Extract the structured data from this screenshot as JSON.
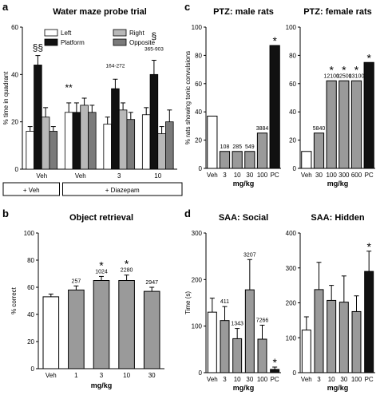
{
  "panel_letters": {
    "a": "a",
    "b": "b",
    "c": "c",
    "d": "d"
  },
  "chart_data": [
    {
      "id": "a",
      "type": "bar",
      "title": "Water maze probe trial",
      "xlabel": "",
      "ylabel": "% time in quadrant",
      "ylim": [
        0,
        60
      ],
      "yticks": [
        0,
        20,
        40,
        60
      ],
      "legend": {
        "placement": "top",
        "entries": [
          {
            "name": "Left",
            "color": "#ffffff"
          },
          {
            "name": "Platform",
            "color": "#111111"
          },
          {
            "name": "Right",
            "color": "#b8b8b8"
          },
          {
            "name": "Opposite",
            "color": "#7a7a7a"
          }
        ]
      },
      "categories": [
        "Veh",
        "Veh",
        "3",
        "10"
      ],
      "groups": [
        {
          "label": "+ Veh",
          "categories": [
            "Veh"
          ]
        },
        {
          "label": "+ Diazepam",
          "categories": [
            "Veh",
            "3",
            "10"
          ]
        }
      ],
      "series": [
        {
          "name": "Left",
          "values": [
            16,
            24,
            19,
            23
          ],
          "errors": [
            2,
            4,
            3,
            3
          ]
        },
        {
          "name": "Platform",
          "values": [
            44,
            24,
            34,
            40
          ],
          "errors": [
            4,
            4,
            4,
            6
          ]
        },
        {
          "name": "Right",
          "values": [
            22,
            27,
            25,
            15
          ],
          "errors": [
            4,
            3,
            3,
            3
          ]
        },
        {
          "name": "Opposite",
          "values": [
            16,
            24,
            21,
            20
          ],
          "errors": [
            2,
            3,
            3,
            5
          ]
        }
      ],
      "annotations": [
        {
          "category": 0,
          "series": 1,
          "text": "§§",
          "value": 50
        },
        {
          "category": 1,
          "series": 0,
          "text": "**",
          "value": 33
        },
        {
          "category": 2,
          "series": 1,
          "text": "164-272",
          "value": 43
        },
        {
          "category": 3,
          "series": 1,
          "text": "365-903",
          "value": 50
        },
        {
          "category": 3,
          "series": 1,
          "text": "§",
          "value": 55
        }
      ]
    },
    {
      "id": "b",
      "type": "bar",
      "title": "Object retrieval",
      "xlabel": "mg/kg",
      "ylabel": "% correct",
      "ylim": [
        0,
        100
      ],
      "yticks": [
        0,
        20,
        40,
        60,
        80,
        100
      ],
      "categories": [
        "Veh",
        "1",
        "3",
        "10",
        "30"
      ],
      "values": [
        53,
        58,
        65,
        65,
        57
      ],
      "errors": [
        2,
        3,
        3,
        4,
        3
      ],
      "colors": [
        "#ffffff",
        "#9a9a9a",
        "#9a9a9a",
        "#9a9a9a",
        "#9a9a9a"
      ],
      "labels": [
        "",
        "257",
        "1024",
        "2280",
        "2947"
      ],
      "stars": [
        "",
        "",
        "*",
        "*",
        ""
      ]
    },
    {
      "id": "c1",
      "type": "bar",
      "title": "PTZ: male rats",
      "xlabel": "mg/kg",
      "ylabel": "% rats showing tonic convulsions",
      "ylim": [
        0,
        100
      ],
      "yticks": [
        0,
        20,
        40,
        60,
        80,
        100
      ],
      "categories": [
        "Veh",
        "3",
        "10",
        "30",
        "100",
        "PC"
      ],
      "values": [
        37,
        12,
        12,
        12,
        25,
        87
      ],
      "colors": [
        "#ffffff",
        "#9a9a9a",
        "#9a9a9a",
        "#9a9a9a",
        "#9a9a9a",
        "#111111"
      ],
      "labels": [
        "",
        "108",
        "285",
        "549",
        "3884",
        ""
      ],
      "stars": [
        "",
        "",
        "",
        "",
        "",
        "*"
      ]
    },
    {
      "id": "c2",
      "type": "bar",
      "title": "PTZ: female rats",
      "xlabel": "mg/kg",
      "ylabel": "",
      "ylim": [
        0,
        100
      ],
      "yticks": [
        0,
        20,
        40,
        60,
        80,
        100
      ],
      "categories": [
        "Veh",
        "30",
        "100",
        "300",
        "600",
        "PC"
      ],
      "values": [
        12,
        25,
        62,
        62,
        62,
        75
      ],
      "colors": [
        "#ffffff",
        "#9a9a9a",
        "#9a9a9a",
        "#9a9a9a",
        "#9a9a9a",
        "#111111"
      ],
      "labels": [
        "",
        "5840",
        "12100",
        "12500",
        "13100",
        ""
      ],
      "stars": [
        "",
        "",
        "*",
        "*",
        "*",
        "*"
      ]
    },
    {
      "id": "d1",
      "type": "bar",
      "title": "SAA: Social",
      "xlabel": "mg/kg",
      "ylabel": "Time (s)",
      "ylim": [
        0,
        300
      ],
      "yticks": [
        0,
        100,
        200,
        300
      ],
      "categories": [
        "Veh",
        "3",
        "10",
        "30",
        "100",
        "PC"
      ],
      "values": [
        130,
        112,
        73,
        178,
        72,
        7
      ],
      "errors": [
        30,
        30,
        22,
        65,
        30,
        5
      ],
      "colors": [
        "#ffffff",
        "#9a9a9a",
        "#9a9a9a",
        "#9a9a9a",
        "#9a9a9a",
        "#111111"
      ],
      "labels": [
        "",
        "411",
        "1343",
        "3207",
        "7266",
        ""
      ],
      "stars": [
        "",
        "",
        "",
        "",
        "",
        "*"
      ]
    },
    {
      "id": "d2",
      "type": "bar",
      "title": "SAA: Hidden",
      "xlabel": "mg/kg",
      "ylabel": "",
      "ylim": [
        0,
        400
      ],
      "yticks": [
        0,
        100,
        200,
        300,
        400
      ],
      "categories": [
        "Veh",
        "3",
        "10",
        "30",
        "100",
        "PC"
      ],
      "values": [
        122,
        238,
        207,
        202,
        175,
        290
      ],
      "errors": [
        38,
        78,
        43,
        75,
        45,
        58
      ],
      "colors": [
        "#ffffff",
        "#9a9a9a",
        "#9a9a9a",
        "#9a9a9a",
        "#9a9a9a",
        "#111111"
      ],
      "labels": [
        "",
        "",
        "",
        "",
        "",
        ""
      ],
      "stars": [
        "",
        "",
        "",
        "",
        "",
        "*"
      ]
    }
  ]
}
